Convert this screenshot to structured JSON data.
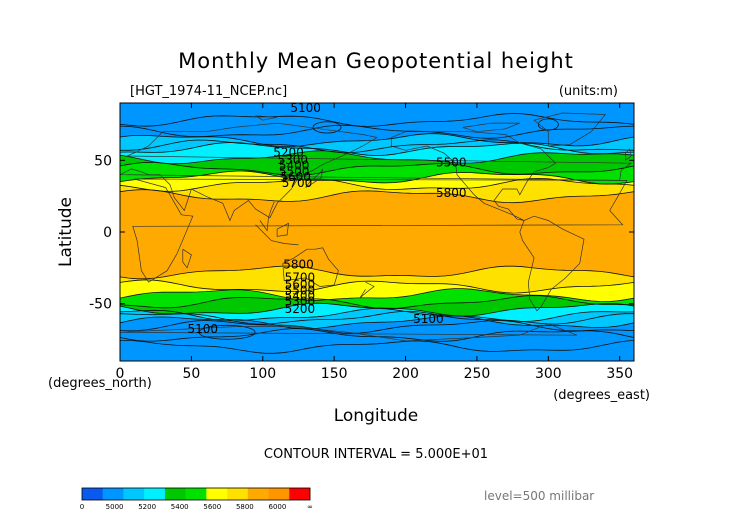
{
  "title": "Monthly Mean Geopotential height",
  "source_label": "[HGT_1974-11_NCEP.nc]",
  "units_label": "(units:m)",
  "contour_interval": "CONTOUR INTERVAL = 5.000E+01",
  "level_label": "level=500 millibar",
  "chart_data": {
    "type": "heatmap",
    "title": "Monthly Mean Geopotential height",
    "xlabel": "Longitude",
    "ylabel": "Latitude",
    "x_unit": "(degrees_east)",
    "y_unit": "(degrees_north)",
    "xlim": [
      0,
      360
    ],
    "ylim": [
      -90,
      90
    ],
    "x_ticks": [
      0,
      50,
      100,
      150,
      200,
      250,
      300,
      350
    ],
    "y_ticks": [
      50,
      0,
      -50
    ],
    "contour_labels": [
      {
        "text": "5100",
        "lon": 130,
        "lat": 86
      },
      {
        "text": "5200",
        "lon": 118,
        "lat": 55
      },
      {
        "text": "5300",
        "lon": 121,
        "lat": 50
      },
      {
        "text": "5400",
        "lon": 122,
        "lat": 46
      },
      {
        "text": "5500",
        "lon": 122,
        "lat": 42
      },
      {
        "text": "5600",
        "lon": 123,
        "lat": 38
      },
      {
        "text": "5700",
        "lon": 124,
        "lat": 34
      },
      {
        "text": "5500",
        "lon": 232,
        "lat": 48
      },
      {
        "text": "5800",
        "lon": 232,
        "lat": 27
      },
      {
        "text": "5800",
        "lon": 125,
        "lat": -23
      },
      {
        "text": "5700",
        "lon": 126,
        "lat": -32
      },
      {
        "text": "5600",
        "lon": 126,
        "lat": -37
      },
      {
        "text": "5500",
        "lon": 126,
        "lat": -41
      },
      {
        "text": "5400",
        "lon": 126,
        "lat": -45
      },
      {
        "text": "5300",
        "lon": 126,
        "lat": -49
      },
      {
        "text": "5200",
        "lon": 126,
        "lat": -54
      },
      {
        "text": "5100",
        "lon": 216,
        "lat": -61
      },
      {
        "text": "5100",
        "lon": 58,
        "lat": -68
      }
    ],
    "colorbar": {
      "labels": [
        "0",
        "5000",
        "5200",
        "5400",
        "5600",
        "5800",
        "6000",
        "∞"
      ],
      "colors": [
        "#0a5af0",
        "#0096ff",
        "#00c8ff",
        "#00f0ff",
        "#00c800",
        "#00e100",
        "#ffff00",
        "#ffe100",
        "#ffaa00",
        "#ff9600",
        "#ff0000"
      ]
    },
    "bands": [
      {
        "from": -90,
        "to": -63,
        "color": "#0096ff"
      },
      {
        "from": -63,
        "to": -58,
        "color": "#00c8ff"
      },
      {
        "from": -58,
        "to": -54,
        "color": "#00f0ff"
      },
      {
        "from": -54,
        "to": -49,
        "color": "#00c800"
      },
      {
        "from": -49,
        "to": -44,
        "color": "#00e100"
      },
      {
        "from": -44,
        "to": -38,
        "color": "#ffff00"
      },
      {
        "from": -38,
        "to": -28,
        "color": "#ffe100"
      },
      {
        "from": -28,
        "to": 25,
        "color": "#ffaa00"
      },
      {
        "from": 25,
        "to": 33,
        "color": "#ffe100"
      },
      {
        "from": 33,
        "to": 38,
        "color": "#ffff00"
      },
      {
        "from": 38,
        "to": 44,
        "color": "#00e100"
      },
      {
        "from": 44,
        "to": 52,
        "color": "#00c800"
      },
      {
        "from": 52,
        "to": 58,
        "color": "#00f0ff"
      },
      {
        "from": 58,
        "to": 64,
        "color": "#00c8ff"
      },
      {
        "from": 64,
        "to": 90,
        "color": "#0096ff"
      }
    ]
  }
}
